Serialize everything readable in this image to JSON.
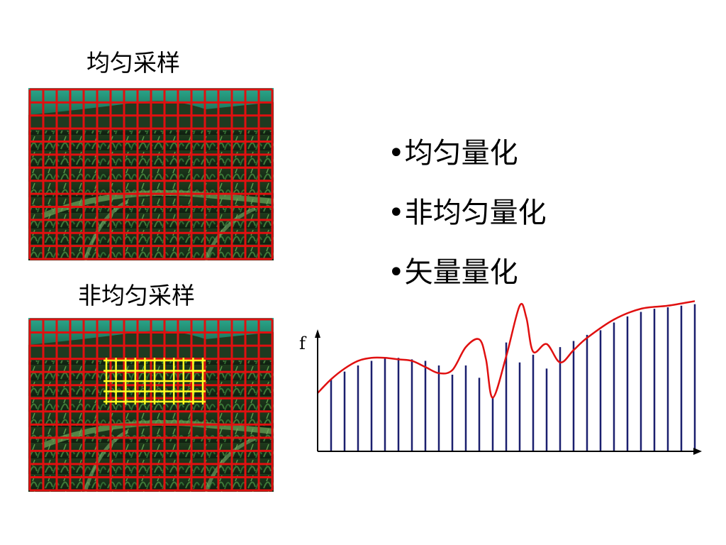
{
  "uniform_sampling": {
    "title": "均匀采样"
  },
  "nonuniform_sampling": {
    "title": "非均匀采样"
  },
  "quantization_list": [
    {
      "label": "•均匀量化"
    },
    {
      "label": "•非均匀量化"
    },
    {
      "label": "•矢量量化"
    }
  ],
  "colors": {
    "grid": "#e01010",
    "fine_grid": "#ffff20",
    "curve": "#e01010",
    "sample_lines": "#1a1f6e",
    "axis": "#000000"
  },
  "chart_data": {
    "type": "line",
    "ylabel": "f",
    "xlabel": "",
    "x": [
      0,
      1,
      2,
      3,
      4,
      5,
      6,
      7,
      8,
      9,
      10,
      11,
      12,
      13,
      14,
      15,
      16,
      17,
      18,
      19,
      20,
      21,
      22,
      23,
      24,
      25,
      26,
      27,
      28
    ],
    "values": [
      0.45,
      0.47,
      0.52,
      0.56,
      0.59,
      0.61,
      0.61,
      0.6,
      0.59,
      0.56,
      0.5,
      0.56,
      0.48,
      0.35,
      0.71,
      0.58,
      0.63,
      0.54,
      0.68,
      0.72,
      0.76,
      0.79,
      0.84,
      0.88,
      0.91,
      0.93,
      0.94,
      0.95,
      0.96
    ],
    "curve": [
      [
        0,
        0.38
      ],
      [
        1,
        0.47
      ],
      [
        2,
        0.54
      ],
      [
        3,
        0.59
      ],
      [
        4,
        0.61
      ],
      [
        5,
        0.61
      ],
      [
        6,
        0.6
      ],
      [
        7,
        0.59
      ],
      [
        8,
        0.55
      ],
      [
        9,
        0.51
      ],
      [
        10,
        0.53
      ],
      [
        11,
        0.68
      ],
      [
        12,
        0.73
      ],
      [
        12.5,
        0.6
      ],
      [
        13,
        0.35
      ],
      [
        14,
        0.62
      ],
      [
        15,
        0.95
      ],
      [
        15.5,
        0.87
      ],
      [
        16,
        0.65
      ],
      [
        17,
        0.7
      ],
      [
        18,
        0.58
      ],
      [
        19,
        0.66
      ],
      [
        20,
        0.74
      ],
      [
        22,
        0.86
      ],
      [
        24,
        0.93
      ],
      [
        26,
        0.95
      ],
      [
        28,
        0.98
      ]
    ]
  }
}
